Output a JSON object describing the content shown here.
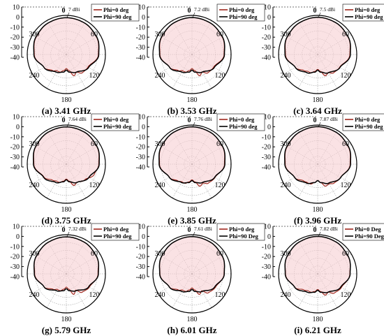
{
  "style": {
    "phi0_color": "#a0281e",
    "phi90_color": "#000000",
    "fill_color": "#f7cfd2",
    "grid_color": "#888888"
  },
  "chart_data": [
    {
      "type": "polar",
      "caption": "(a)  3.41 GHz",
      "peak_label": "7 dBi",
      "legend": [
        "Phi=0 deg",
        "Phi=90 deg"
      ],
      "r_ticks": [
        "10",
        "0",
        "-10",
        "-20",
        "-30",
        "-40"
      ],
      "angle_labels": [
        "300",
        "60",
        "120",
        "240",
        "180"
      ],
      "rlim": [
        -40,
        10
      ],
      "peak_dbi": 7,
      "series": [
        {
          "name": "Phi=0 deg",
          "angles_deg": [
            0,
            30,
            60,
            90,
            120,
            140,
            150,
            160,
            170,
            180,
            190,
            200,
            210,
            220,
            240,
            270,
            300,
            330,
            360
          ],
          "gain_dbi": [
            7.0,
            6.5,
            4.5,
            1.0,
            -8.0,
            -9.0,
            -14.0,
            -11.0,
            -19.0,
            -22.0,
            -19.0,
            -16.0,
            -16.0,
            -13.0,
            -7.0,
            1.0,
            4.5,
            6.5,
            7.0
          ]
        },
        {
          "name": "Phi=90 deg",
          "angles_deg": [
            0,
            30,
            60,
            90,
            120,
            150,
            170,
            180,
            190,
            210,
            240,
            270,
            300,
            330,
            360
          ],
          "gain_dbi": [
            7.0,
            6.5,
            4.8,
            1.5,
            -7.0,
            -14.0,
            -17.0,
            -20.0,
            -17.0,
            -14.0,
            -7.0,
            1.5,
            4.8,
            6.5,
            7.0
          ]
        }
      ]
    },
    {
      "type": "polar",
      "caption": "(b) 3.53 GHz",
      "peak_label": "7.2 dBi",
      "legend": [
        "Phi=0 deg",
        "Phi=90 deg"
      ],
      "r_ticks": [
        "10",
        "0",
        "-10",
        "-20",
        "-30",
        "-40"
      ],
      "angle_labels": [
        "300",
        "60",
        "120",
        "240",
        "180"
      ],
      "rlim": [
        -40,
        10
      ],
      "peak_dbi": 7.2,
      "series": [
        {
          "name": "Phi=0 deg",
          "angles_deg": [
            0,
            30,
            60,
            90,
            120,
            140,
            150,
            160,
            170,
            180,
            190,
            200,
            210,
            220,
            240,
            270,
            300,
            330,
            360
          ],
          "gain_dbi": [
            7.2,
            6.6,
            4.6,
            1.0,
            -8.0,
            -9.0,
            -14.0,
            -11.0,
            -19.0,
            -22.0,
            -19.0,
            -16.0,
            -16.0,
            -13.0,
            -7.0,
            1.0,
            4.6,
            6.6,
            7.2
          ]
        },
        {
          "name": "Phi=90 deg",
          "angles_deg": [
            0,
            30,
            60,
            90,
            120,
            150,
            170,
            180,
            190,
            210,
            240,
            270,
            300,
            330,
            360
          ],
          "gain_dbi": [
            7.2,
            6.6,
            4.9,
            1.5,
            -7.0,
            -14.0,
            -17.0,
            -20.0,
            -17.0,
            -14.0,
            -7.0,
            1.5,
            4.9,
            6.6,
            7.2
          ]
        }
      ]
    },
    {
      "type": "polar",
      "caption": "(c) 3.64 GHz",
      "peak_label": "7.5 dBi",
      "legend": [
        "Phi=0 deg",
        "Phi=90 deg"
      ],
      "r_ticks": [
        "10",
        "0",
        "-10",
        "-20",
        "-30",
        "-40"
      ],
      "angle_labels": [
        "300",
        "60",
        "120",
        "240",
        "180"
      ],
      "rlim": [
        -40,
        10
      ],
      "peak_dbi": 7.5,
      "series": [
        {
          "name": "Phi=0 deg",
          "angles_deg": [
            0,
            30,
            60,
            90,
            120,
            140,
            150,
            160,
            170,
            180,
            190,
            200,
            210,
            220,
            240,
            270,
            300,
            330,
            360
          ],
          "gain_dbi": [
            7.5,
            6.8,
            4.8,
            1.2,
            -7.5,
            -9.0,
            -13.0,
            -11.0,
            -18.0,
            -21.0,
            -18.0,
            -15.0,
            -15.0,
            -13.0,
            -7.0,
            1.2,
            4.8,
            6.8,
            7.5
          ]
        },
        {
          "name": "Phi=90 deg",
          "angles_deg": [
            0,
            30,
            60,
            90,
            120,
            150,
            170,
            180,
            190,
            210,
            240,
            270,
            300,
            330,
            360
          ],
          "gain_dbi": [
            7.5,
            6.8,
            5.0,
            1.8,
            -7.0,
            -13.0,
            -17.0,
            -20.0,
            -17.0,
            -13.0,
            -7.0,
            1.8,
            5.0,
            6.8,
            7.5
          ]
        }
      ]
    },
    {
      "type": "polar",
      "caption": "(d) 3.75 GHz",
      "peak_label": "7.64 dBi",
      "legend": [
        "Phi=0 deg",
        "Phi=90 deg"
      ],
      "r_ticks": [
        "10",
        "0",
        "-10",
        "-20",
        "-30",
        "-40"
      ],
      "angle_labels": [
        "300",
        "60",
        "120",
        "240",
        "180"
      ],
      "rlim": [
        -40,
        10
      ],
      "peak_dbi": 7.64,
      "series": [
        {
          "name": "Phi=0 deg",
          "angles_deg": [
            0,
            30,
            60,
            90,
            110,
            130,
            150,
            160,
            170,
            180,
            190,
            200,
            210,
            220,
            240,
            270,
            300,
            330,
            360
          ],
          "gain_dbi": [
            7.6,
            7.0,
            5.0,
            1.5,
            -2.0,
            -9.0,
            -13.0,
            -11.0,
            -18.0,
            -21.0,
            -18.0,
            -15.0,
            -15.0,
            -13.0,
            -7.0,
            1.5,
            5.0,
            7.0,
            7.6
          ]
        },
        {
          "name": "Phi=90 deg",
          "angles_deg": [
            0,
            30,
            60,
            90,
            120,
            150,
            170,
            180,
            190,
            210,
            240,
            270,
            300,
            330,
            360
          ],
          "gain_dbi": [
            7.6,
            7.0,
            5.2,
            2.0,
            -6.5,
            -13.0,
            -17.0,
            -20.0,
            -17.0,
            -13.0,
            -6.5,
            2.0,
            5.2,
            7.0,
            7.6
          ]
        }
      ]
    },
    {
      "type": "polar",
      "caption": "(e) 3.85 GHz",
      "peak_label": "7.76 dBi",
      "legend": [
        "Phi=0 deg",
        "Phi=90 deg"
      ],
      "r_ticks": [
        "10",
        "0",
        "-10",
        "-20",
        "-30",
        "-40"
      ],
      "angle_labels": [
        "300",
        "60",
        "120",
        "240",
        "180"
      ],
      "rlim": [
        -40,
        10
      ],
      "peak_dbi": 7.76,
      "series": [
        {
          "name": "Phi=0 deg",
          "angles_deg": [
            0,
            30,
            60,
            90,
            120,
            140,
            150,
            160,
            170,
            180,
            190,
            200,
            210,
            220,
            240,
            270,
            300,
            330,
            360
          ],
          "gain_dbi": [
            7.7,
            7.0,
            5.0,
            1.5,
            -6.0,
            -8.0,
            -12.0,
            -10.0,
            -17.0,
            -20.0,
            -17.0,
            -14.0,
            -14.0,
            -12.0,
            -6.5,
            1.5,
            5.0,
            7.0,
            7.7
          ]
        },
        {
          "name": "Phi=90 deg",
          "angles_deg": [
            0,
            30,
            60,
            90,
            120,
            150,
            170,
            180,
            190,
            210,
            240,
            270,
            300,
            330,
            360
          ],
          "gain_dbi": [
            7.7,
            7.0,
            5.2,
            2.0,
            -6.5,
            -13.0,
            -16.0,
            -19.0,
            -16.0,
            -13.0,
            -6.5,
            2.0,
            5.2,
            7.0,
            7.7
          ]
        }
      ]
    },
    {
      "type": "polar",
      "caption": "(f) 3.96 GHz",
      "peak_label": "7.87 dBi",
      "legend": [
        "Phi=0 deg",
        "Phi=90 deg"
      ],
      "r_ticks": [
        "10",
        "0",
        "-10",
        "-20",
        "-30",
        "-40"
      ],
      "angle_labels": [
        "300",
        "60",
        "120",
        "240",
        "180"
      ],
      "rlim": [
        -40,
        10
      ],
      "peak_dbi": 7.87,
      "series": [
        {
          "name": "Phi=0 deg",
          "angles_deg": [
            0,
            30,
            60,
            90,
            120,
            140,
            150,
            160,
            170,
            180,
            190,
            200,
            210,
            220,
            240,
            270,
            300,
            330,
            360
          ],
          "gain_dbi": [
            7.9,
            7.1,
            5.0,
            1.5,
            -6.0,
            -8.0,
            -11.0,
            -10.0,
            -16.0,
            -19.0,
            -16.0,
            -13.0,
            -13.0,
            -12.0,
            -6.0,
            1.5,
            5.0,
            7.1,
            7.9
          ]
        },
        {
          "name": "Phi=90 deg",
          "angles_deg": [
            0,
            30,
            60,
            90,
            120,
            150,
            170,
            180,
            190,
            210,
            240,
            270,
            300,
            330,
            360
          ],
          "gain_dbi": [
            7.9,
            7.1,
            5.3,
            2.0,
            -6.0,
            -12.0,
            -16.0,
            -19.0,
            -16.0,
            -12.0,
            -6.0,
            2.0,
            5.3,
            7.1,
            7.9
          ]
        }
      ]
    },
    {
      "type": "polar",
      "caption": "(g) 5.79 GHz",
      "peak_label": "7.32 dBi",
      "legend": [
        "Phi=0 deg",
        "Phi=90 deg"
      ],
      "r_ticks": [
        "10",
        "0",
        "-10",
        "-20",
        "-30",
        "-40"
      ],
      "angle_labels": [
        "300",
        "60",
        "120",
        "240",
        "180"
      ],
      "rlim": [
        -40,
        10
      ],
      "peak_dbi": 7.32,
      "series": [
        {
          "name": "Phi=0 deg",
          "angles_deg": [
            0,
            30,
            60,
            90,
            120,
            140,
            150,
            160,
            170,
            180,
            190,
            200,
            210,
            220,
            240,
            270,
            300,
            330,
            360
          ],
          "gain_dbi": [
            7.3,
            6.5,
            4.5,
            0.5,
            -6.0,
            -9.0,
            -16.0,
            -12.0,
            -20.0,
            -23.0,
            -20.0,
            -17.0,
            -17.0,
            -14.0,
            -7.0,
            0.5,
            4.5,
            6.5,
            7.3
          ]
        },
        {
          "name": "Phi=90 deg",
          "angles_deg": [
            0,
            30,
            60,
            90,
            120,
            150,
            170,
            180,
            190,
            210,
            240,
            270,
            300,
            330,
            360
          ],
          "gain_dbi": [
            7.3,
            6.5,
            4.5,
            1.0,
            -7.0,
            -15.0,
            -18.0,
            -21.0,
            -18.0,
            -15.0,
            -7.0,
            1.0,
            4.5,
            6.5,
            7.3
          ]
        }
      ]
    },
    {
      "type": "polar",
      "caption": "(h) 6.01 GHz",
      "peak_label": "7.61 dBi",
      "legend": [
        "Phi=0 deg",
        "Phi=90 Deg"
      ],
      "r_ticks": [
        "10",
        "0",
        "-10",
        "-20",
        "-30",
        "-40"
      ],
      "angle_labels": [
        "300",
        "60",
        "120",
        "240",
        "180"
      ],
      "rlim": [
        -40,
        10
      ],
      "peak_dbi": 7.61,
      "series": [
        {
          "name": "Phi=0 deg",
          "angles_deg": [
            0,
            30,
            60,
            90,
            120,
            140,
            150,
            160,
            170,
            180,
            190,
            200,
            210,
            220,
            240,
            270,
            300,
            330,
            360
          ],
          "gain_dbi": [
            7.6,
            6.8,
            4.8,
            1.0,
            -5.5,
            -8.0,
            -15.0,
            -12.0,
            -19.0,
            -22.0,
            -19.0,
            -16.0,
            -16.0,
            -13.0,
            -6.5,
            1.0,
            4.8,
            6.8,
            7.6
          ]
        },
        {
          "name": "Phi=90 Deg",
          "angles_deg": [
            0,
            30,
            60,
            90,
            120,
            150,
            170,
            180,
            190,
            210,
            240,
            270,
            300,
            330,
            360
          ],
          "gain_dbi": [
            7.6,
            6.8,
            4.8,
            1.3,
            -6.5,
            -14.0,
            -17.0,
            -20.0,
            -17.0,
            -14.0,
            -6.5,
            1.3,
            4.8,
            6.8,
            7.6
          ]
        }
      ]
    },
    {
      "type": "polar",
      "caption": "(i) 6.21 GHz",
      "peak_label": "7.82 dBi",
      "legend": [
        "Phi=0 Deg",
        "Phi=90 Deg"
      ],
      "r_ticks": [
        "10",
        "0",
        "-10",
        "-20",
        "-30",
        "-40"
      ],
      "angle_labels": [
        "300",
        "60",
        "120",
        "240",
        "180"
      ],
      "rlim": [
        -40,
        10
      ],
      "peak_dbi": 7.82,
      "series": [
        {
          "name": "Phi=0 Deg",
          "angles_deg": [
            0,
            30,
            60,
            90,
            120,
            140,
            150,
            160,
            170,
            180,
            190,
            200,
            210,
            220,
            240,
            270,
            300,
            330,
            360
          ],
          "gain_dbi": [
            7.8,
            7.0,
            5.0,
            1.2,
            -5.0,
            -7.5,
            -13.0,
            -11.0,
            -17.0,
            -20.0,
            -17.0,
            -15.0,
            -15.0,
            -13.0,
            -6.0,
            1.2,
            5.0,
            7.0,
            7.8
          ]
        },
        {
          "name": "Phi=90 Deg",
          "angles_deg": [
            0,
            30,
            60,
            90,
            120,
            150,
            170,
            180,
            190,
            210,
            240,
            270,
            300,
            330,
            360
          ],
          "gain_dbi": [
            7.8,
            7.0,
            5.0,
            1.5,
            -6.0,
            -13.0,
            -16.0,
            -19.0,
            -16.0,
            -13.0,
            -6.0,
            1.5,
            5.0,
            7.0,
            7.8
          ]
        }
      ]
    }
  ]
}
